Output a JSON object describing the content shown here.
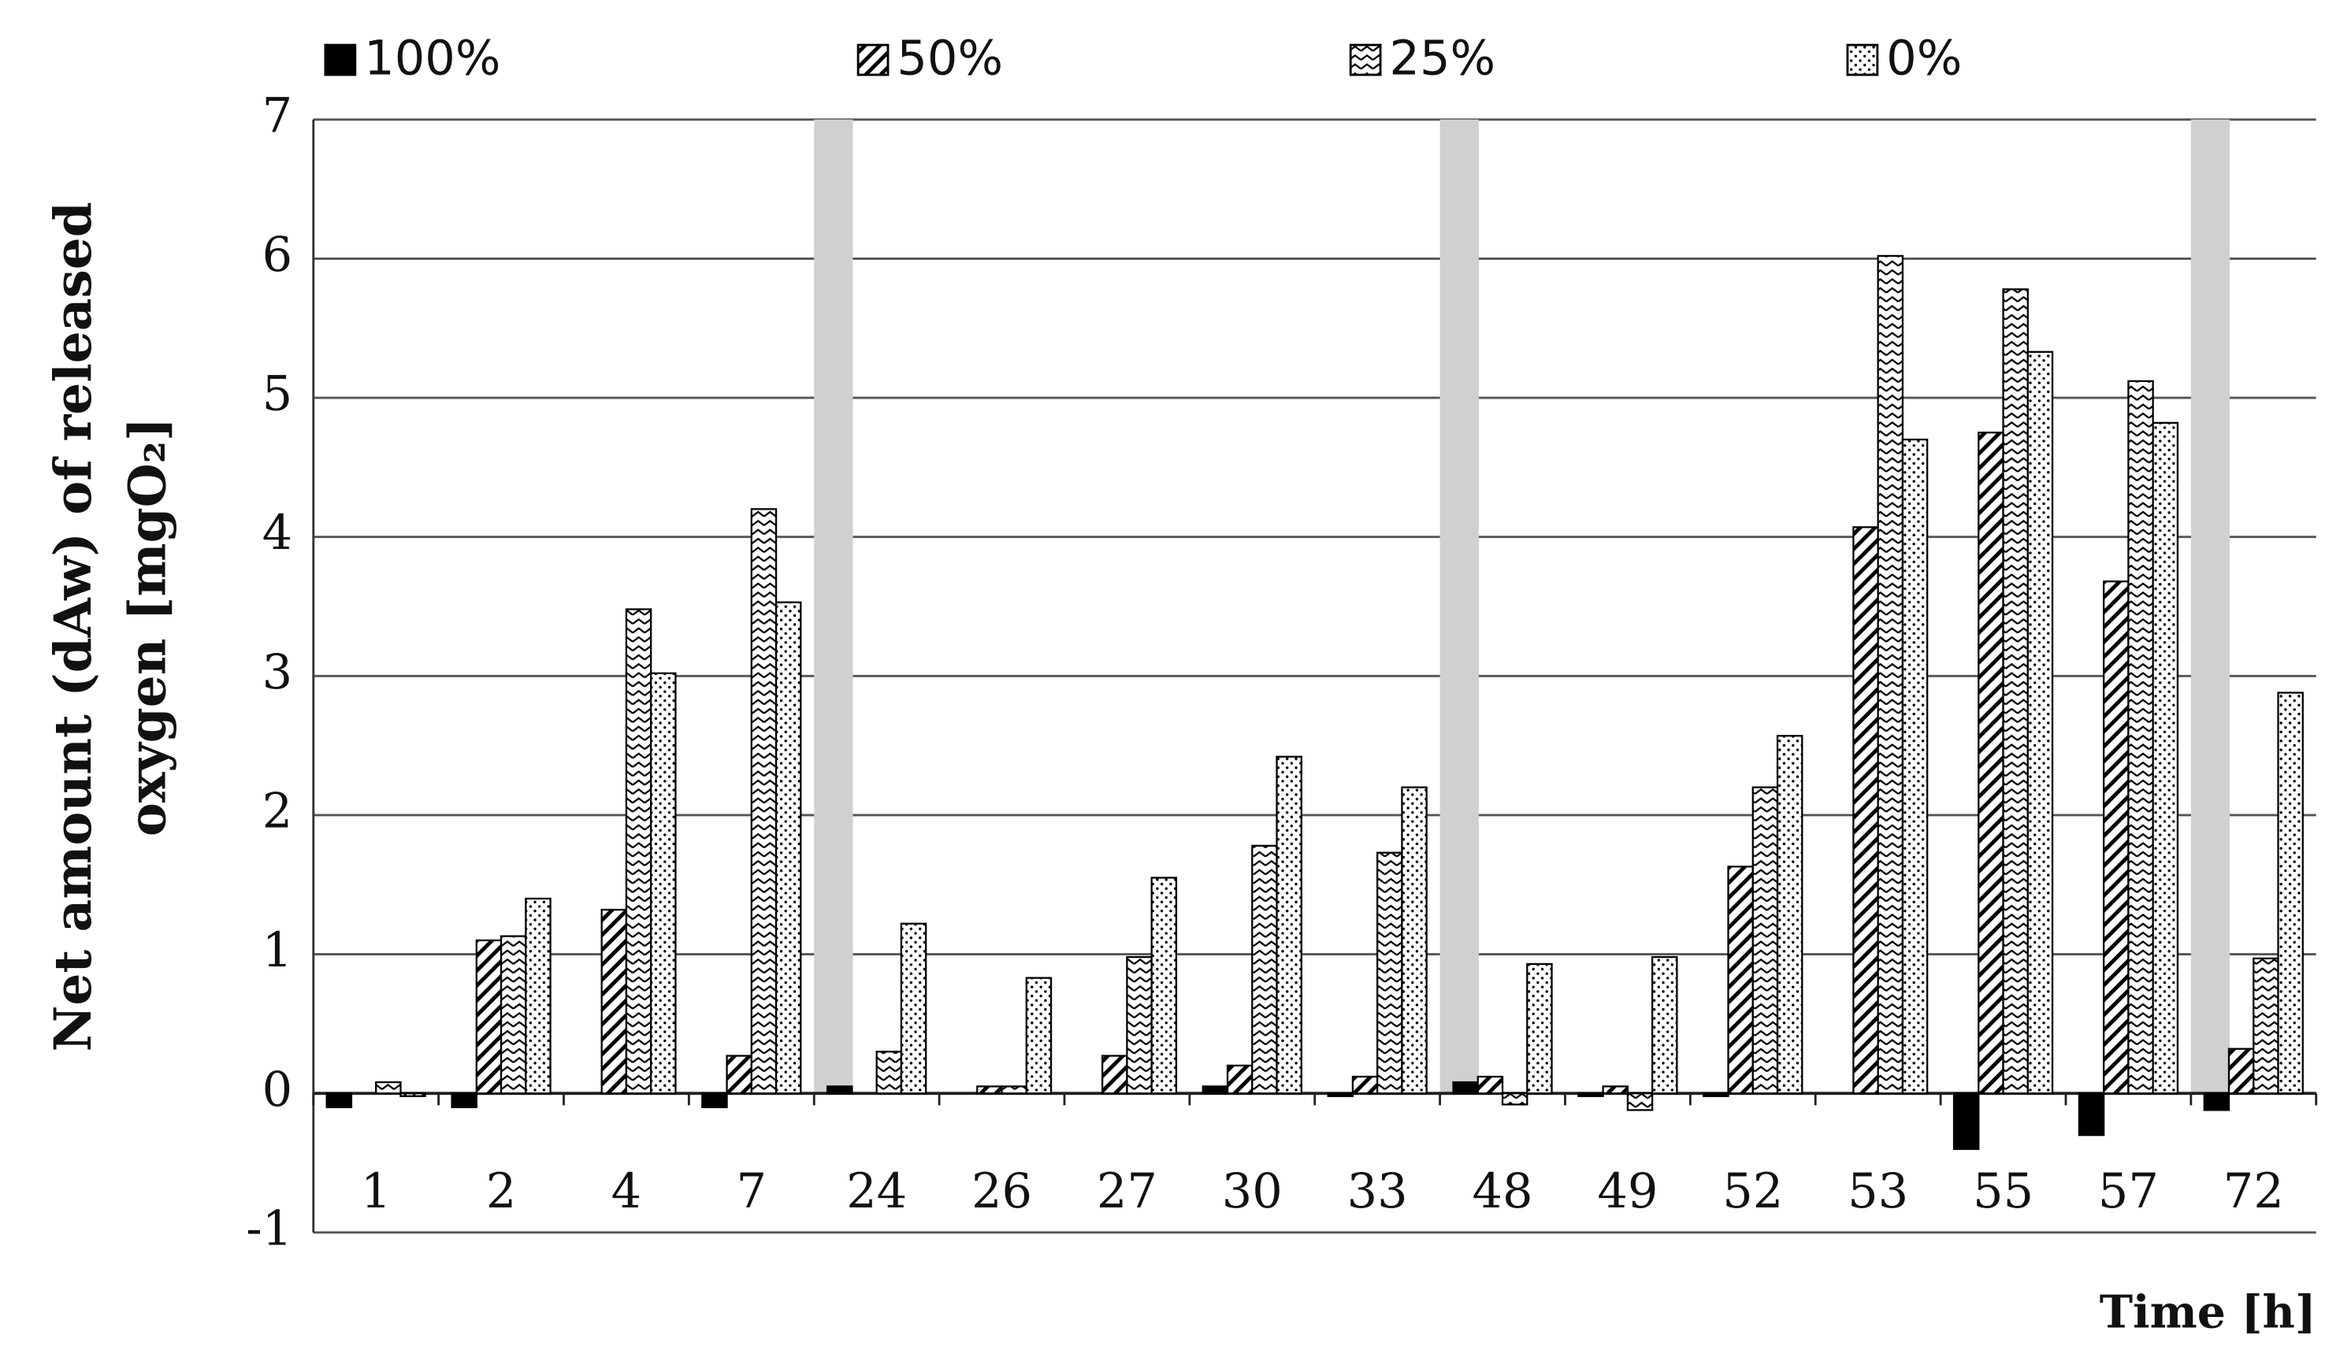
{
  "chart_data": {
    "type": "bar",
    "ylabel": [
      "Net amount (dAw) of released",
      "oxygen [mgO₂]"
    ],
    "xlabel": "Time [h]",
    "categories": [
      "1",
      "2",
      "4",
      "7",
      "24",
      "26",
      "27",
      "30",
      "33",
      "48",
      "49",
      "52",
      "53",
      "55",
      "57",
      "72"
    ],
    "series": [
      {
        "name": "100%",
        "color": "#000000",
        "pattern": "solid",
        "values": [
          -0.1,
          -0.1,
          0,
          -0.1,
          0.05,
          0,
          0,
          0.05,
          -0.02,
          0.08,
          -0.02,
          -0.02,
          0,
          -0.4,
          -0.3,
          -0.12
        ]
      },
      {
        "name": "50%",
        "color": "#000000",
        "pattern": "hatch",
        "values": [
          0,
          1.1,
          1.32,
          0.27,
          0,
          0.05,
          0.27,
          0.2,
          0.12,
          0.12,
          0.05,
          1.63,
          4.07,
          4.75,
          3.68,
          0.32
        ]
      },
      {
        "name": "25%",
        "color": "#000000",
        "pattern": "zigzag",
        "values": [
          0.08,
          1.13,
          3.48,
          4.2,
          0.3,
          0.05,
          0.98,
          1.78,
          1.73,
          -0.08,
          -0.12,
          2.2,
          6.02,
          5.78,
          5.12,
          0.97
        ]
      },
      {
        "name": "0%",
        "color": "#000000",
        "pattern": "dots",
        "values": [
          -0.02,
          1.4,
          3.02,
          3.53,
          1.22,
          0.83,
          1.55,
          2.42,
          2.2,
          0.93,
          0.98,
          2.57,
          4.7,
          5.33,
          4.82,
          2.88
        ]
      }
    ],
    "ylim": [
      -1,
      7
    ],
    "yticks": [
      -1,
      0,
      1,
      2,
      3,
      4,
      5,
      6,
      7
    ],
    "grid": true
  }
}
